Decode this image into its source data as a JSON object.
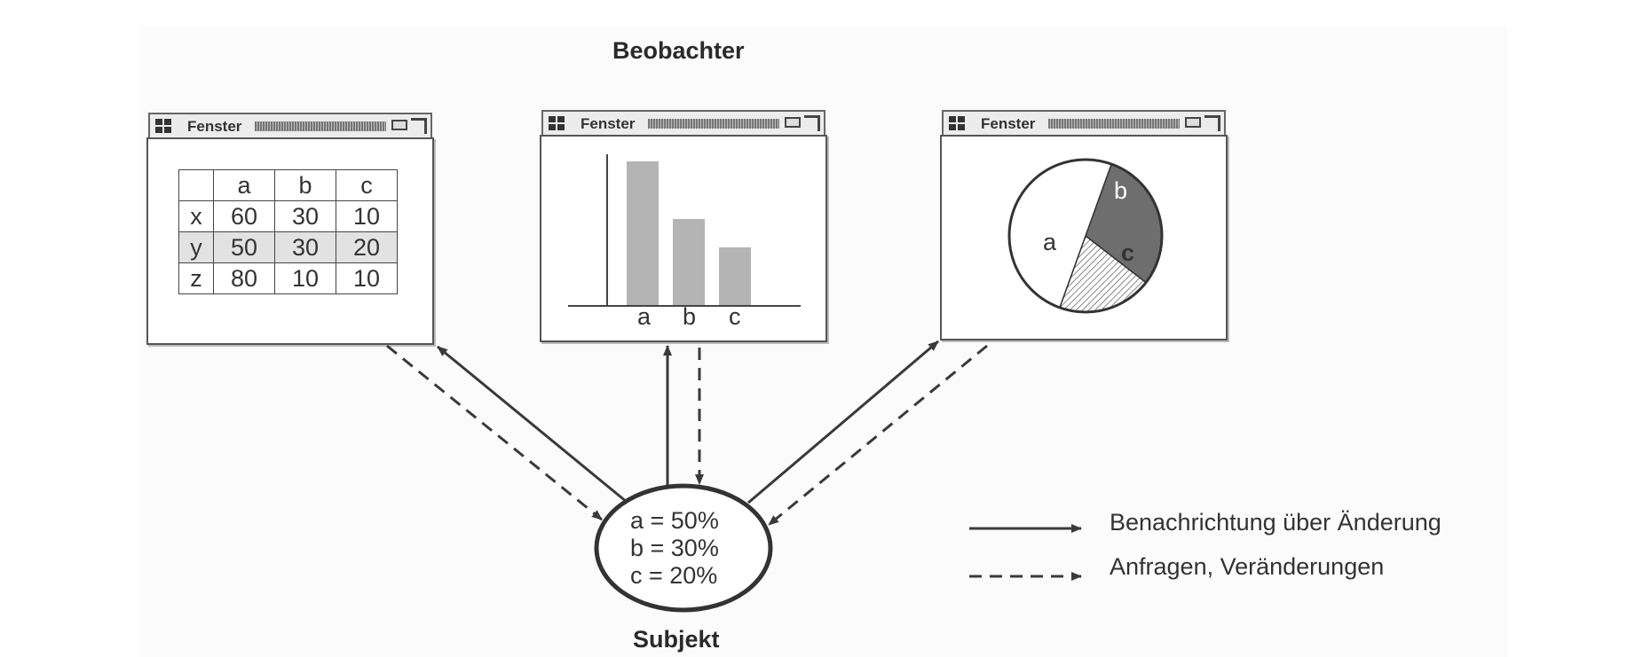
{
  "observer_label": "Beobachter",
  "subject_label": "Subjekt",
  "windows": [
    {
      "title": "Fenster",
      "icons": [
        "window-menu-icon",
        "minimize-icon",
        "maximize-icon"
      ]
    },
    {
      "title": "Fenster",
      "icons": [
        "window-menu-icon",
        "minimize-icon",
        "maximize-icon"
      ]
    },
    {
      "title": "Fenster",
      "icons": [
        "window-menu-icon",
        "minimize-icon",
        "maximize-icon"
      ]
    }
  ],
  "table_view": {
    "columns": [
      "",
      "a",
      "b",
      "c"
    ],
    "rows": [
      {
        "label": "x",
        "values": [
          "60",
          "30",
          "10"
        ]
      },
      {
        "label": "y",
        "values": [
          "50",
          "30",
          "20"
        ]
      },
      {
        "label": "z",
        "values": [
          "80",
          "10",
          "10"
        ]
      }
    ]
  },
  "bar_view": {
    "categories": [
      "a",
      "b",
      "c"
    ],
    "values": [
      50,
      30,
      20
    ]
  },
  "pie_view": {
    "slices": [
      {
        "label": "a",
        "value": 50,
        "fill": "#ffffff"
      },
      {
        "label": "b",
        "value": 30,
        "fill": "#6e6e6e"
      },
      {
        "label": "c",
        "value": 20,
        "fill": "hatched"
      }
    ]
  },
  "subject_values": [
    "a = 50%",
    "b = 30%",
    "c = 20%"
  ],
  "legend": {
    "solid": "Benachrichtung über Änderung",
    "dashed": "Anfragen, Veränderungen"
  },
  "colors": {
    "line": "#3a3a3a",
    "bar": "#b4b4b4",
    "slice_b": "#6e6e6e"
  }
}
